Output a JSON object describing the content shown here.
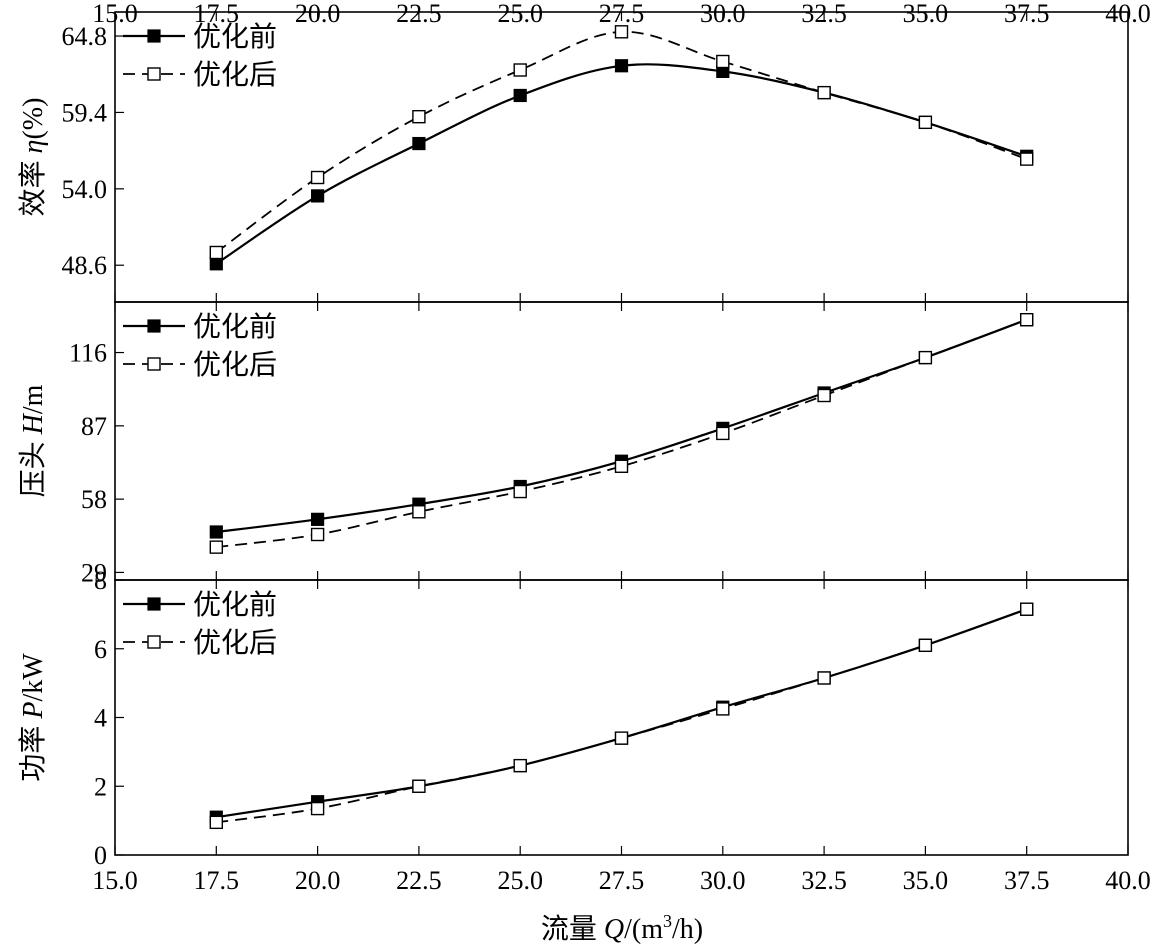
{
  "chart_data": {
    "type": "line",
    "x": [
      17.5,
      20.0,
      22.5,
      25.0,
      27.5,
      30.0,
      32.5,
      35.0,
      37.5
    ],
    "xlim": [
      15.0,
      40.0
    ],
    "xticks": [
      "15.0",
      "17.5",
      "20.0",
      "22.5",
      "25.0",
      "27.5",
      "30.0",
      "32.5",
      "35.0",
      "37.5",
      "40.0"
    ],
    "xlabel": {
      "prefix": "流量 ",
      "var": "Q",
      "mid": "/(m",
      "sup": "3",
      "suffix": "/h)"
    },
    "shared_x_axis": true,
    "panels": [
      {
        "id": "efficiency",
        "ylabel": {
          "prefix": "效率 ",
          "var": "η",
          "suffix": "(%)"
        },
        "ylim": [
          46.0,
          66.5
        ],
        "yticks": [
          "48.6",
          "54.0",
          "59.4",
          "64.8"
        ],
        "legend": "top-left",
        "series": [
          {
            "name": "优化前",
            "values": [
              48.7,
              53.5,
              57.2,
              60.6,
              62.7,
              62.3,
              60.8,
              58.7,
              56.3
            ],
            "style": "solid",
            "marker": "filled-square"
          },
          {
            "name": "优化后",
            "values": [
              49.5,
              54.8,
              59.1,
              62.4,
              65.1,
              63.0,
              60.8,
              58.7,
              56.1
            ],
            "style": "dashed",
            "marker": "open-square"
          }
        ]
      },
      {
        "id": "head",
        "ylabel": {
          "prefix": "压头 ",
          "var": "H",
          "suffix": "/m"
        },
        "ylim": [
          26.0,
          136.0
        ],
        "yticks": [
          "29",
          "58",
          "87",
          "116"
        ],
        "legend": "top-left",
        "series": [
          {
            "name": "优化前",
            "values": [
              45,
              50,
              56,
              63,
              73,
              86,
              100,
              114,
              129
            ],
            "style": "solid",
            "marker": "filled-square"
          },
          {
            "name": "优化后",
            "values": [
              39,
              44,
              53,
              61,
              71,
              84,
              99,
              114,
              129
            ],
            "style": "dashed",
            "marker": "open-square"
          }
        ]
      },
      {
        "id": "power",
        "ylabel": {
          "prefix": "功率 ",
          "var": "P",
          "suffix": "/kW"
        },
        "ylim": [
          0.0,
          8.0
        ],
        "yticks": [
          "0",
          "2",
          "4",
          "6",
          "8"
        ],
        "legend": "top-left",
        "series": [
          {
            "name": "优化前",
            "values": [
              1.1,
              1.55,
              2.0,
              2.6,
              3.4,
              4.3,
              5.15,
              6.1,
              7.15
            ],
            "style": "solid",
            "marker": "filled-square"
          },
          {
            "name": "优化后",
            "values": [
              0.95,
              1.35,
              2.0,
              2.6,
              3.4,
              4.25,
              5.15,
              6.1,
              7.15
            ],
            "style": "dashed",
            "marker": "open-square"
          }
        ]
      }
    ]
  }
}
